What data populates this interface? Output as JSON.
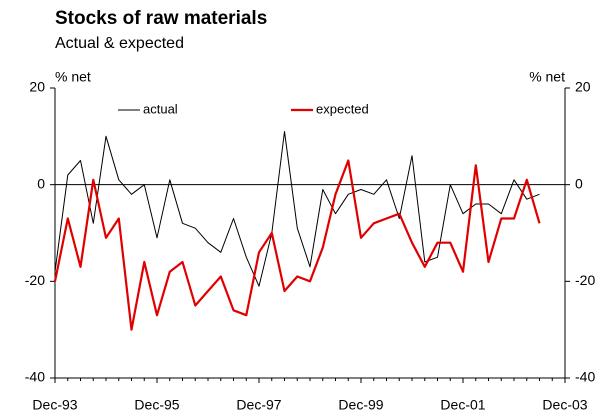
{
  "chart_data": {
    "type": "line",
    "title": "Stocks of raw materials",
    "subtitle": "Actual & expected",
    "y_label": "% net",
    "y2_label": "% net",
    "categories": [
      "Dec-93",
      null,
      null,
      null,
      null,
      null,
      null,
      null,
      "Dec-95",
      null,
      null,
      null,
      null,
      null,
      null,
      null,
      "Dec-97",
      null,
      null,
      null,
      null,
      null,
      null,
      null,
      "Dec-99",
      null,
      null,
      null,
      null,
      null,
      null,
      null,
      "Dec-01",
      null,
      null,
      null,
      null,
      null,
      null,
      null,
      "Dec-03"
    ],
    "series": [
      {
        "name": "actual",
        "color": "#000000",
        "values": [
          -18,
          2,
          5,
          -8,
          10,
          1,
          -2,
          0,
          -11,
          1,
          -8,
          -9,
          -12,
          -14,
          -7,
          -15,
          -21,
          -10,
          11,
          -9,
          -17,
          -1,
          -6,
          -2,
          -1,
          -2,
          1,
          -7,
          6,
          -16,
          -15,
          0,
          -6,
          -4,
          -4,
          -6,
          1,
          -3,
          -2,
          null,
          null
        ]
      },
      {
        "name": "expected",
        "color": "#e00000",
        "values": [
          -20,
          -7,
          -17,
          1,
          -11,
          -7,
          -30,
          -16,
          -27,
          -18,
          -16,
          -25,
          -22,
          -19,
          -26,
          -27,
          -14,
          -10,
          -22,
          -19,
          -20,
          -13,
          -2,
          5,
          -11,
          -8,
          -7,
          -6,
          -12,
          -17,
          -12,
          -12,
          -18,
          4,
          -16,
          -7,
          -7,
          1,
          -8,
          null,
          null
        ]
      }
    ],
    "ylim": [
      -40,
      20
    ],
    "yticks": [
      -40,
      -20,
      0,
      20
    ],
    "y2lim": [
      -40,
      20
    ],
    "y2ticks": [
      -40,
      -20,
      0,
      20
    ],
    "legend": "top"
  }
}
